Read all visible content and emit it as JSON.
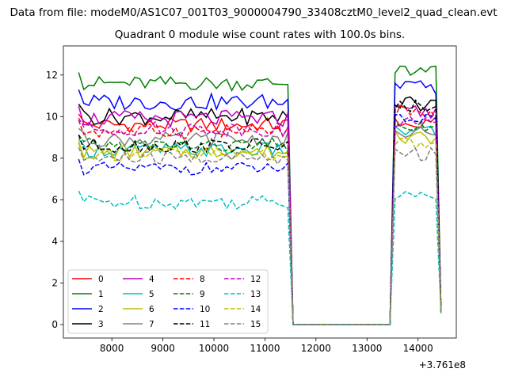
{
  "figure_title": "Data from file: modeM0/AS1C07_001T03_9000004790_33408cztM0_level2_quad_clean.evt",
  "chart_data": {
    "type": "line",
    "title": "Quadrant 0 module wise count rates with 100.0s bins.",
    "xlabel": "",
    "ylabel": "",
    "x_offset_label": "+3.761e8",
    "xlim": [
      7050,
      14750
    ],
    "ylim": [
      -0.65,
      13.4
    ],
    "xticks": [
      8000,
      9000,
      10000,
      11000,
      12000,
      13000,
      14000
    ],
    "yticks": [
      0,
      2,
      4,
      6,
      8,
      10,
      12
    ],
    "grid": false,
    "legend": {
      "placement": "lower-left",
      "columns": 4
    },
    "series": [
      {
        "name": "0",
        "color": "#ff0000",
        "dash": "solid",
        "base": 9.6,
        "amp": 0.35,
        "base2": 9.8
      },
      {
        "name": "1",
        "color": "#008000",
        "dash": "solid",
        "base": 11.6,
        "amp": 0.35,
        "base2": 12.2
      },
      {
        "name": "2",
        "color": "#0000ff",
        "dash": "solid",
        "base": 10.7,
        "amp": 0.4,
        "base2": 11.4
      },
      {
        "name": "3",
        "color": "#000000",
        "dash": "solid",
        "base": 10.0,
        "amp": 0.4,
        "base2": 10.6
      },
      {
        "name": "4",
        "color": "#bf00bf",
        "dash": "solid",
        "base": 9.9,
        "amp": 0.4,
        "base2": 10.2
      },
      {
        "name": "5",
        "color": "#00bfbf",
        "dash": "solid",
        "base": 8.4,
        "amp": 0.35,
        "base2": 9.3
      },
      {
        "name": "6",
        "color": "#bfbf00",
        "dash": "solid",
        "base": 8.3,
        "amp": 0.35,
        "base2": 9.0
      },
      {
        "name": "7",
        "color": "#808080",
        "dash": "solid",
        "base": 8.9,
        "amp": 0.35,
        "base2": 9.3
      },
      {
        "name": "8",
        "color": "#ff0000",
        "dash": "dashed",
        "base": 9.3,
        "amp": 0.35,
        "base2": 10.2
      },
      {
        "name": "9",
        "color": "#008000",
        "dash": "dashed",
        "base": 8.6,
        "amp": 0.35,
        "base2": 9.6
      },
      {
        "name": "10",
        "color": "#0000ff",
        "dash": "dashed",
        "base": 7.5,
        "amp": 0.3,
        "base2": 9.9
      },
      {
        "name": "11",
        "color": "#000000",
        "dash": "dashed",
        "base": 8.6,
        "amp": 0.35,
        "base2": 10.5
      },
      {
        "name": "12",
        "color": "#bf00bf",
        "dash": "dashed",
        "base": 9.4,
        "amp": 0.35,
        "base2": 9.8
      },
      {
        "name": "13",
        "color": "#00bfbf",
        "dash": "dashed",
        "base": 5.9,
        "amp": 0.35,
        "base2": 6.3
      },
      {
        "name": "14",
        "color": "#bfbf00",
        "dash": "dashed",
        "base": 8.2,
        "amp": 0.35,
        "base2": 8.7
      },
      {
        "name": "15",
        "color": "#808080",
        "dash": "dashed",
        "base": 8.0,
        "amp": 0.35,
        "base2": 8.2
      }
    ],
    "segments": {
      "start": 7350,
      "step": 100,
      "active1_end": 11450,
      "gap_start": 11550,
      "gap_end": 13450,
      "active2_start": 13550,
      "active2_end": 14450
    }
  }
}
